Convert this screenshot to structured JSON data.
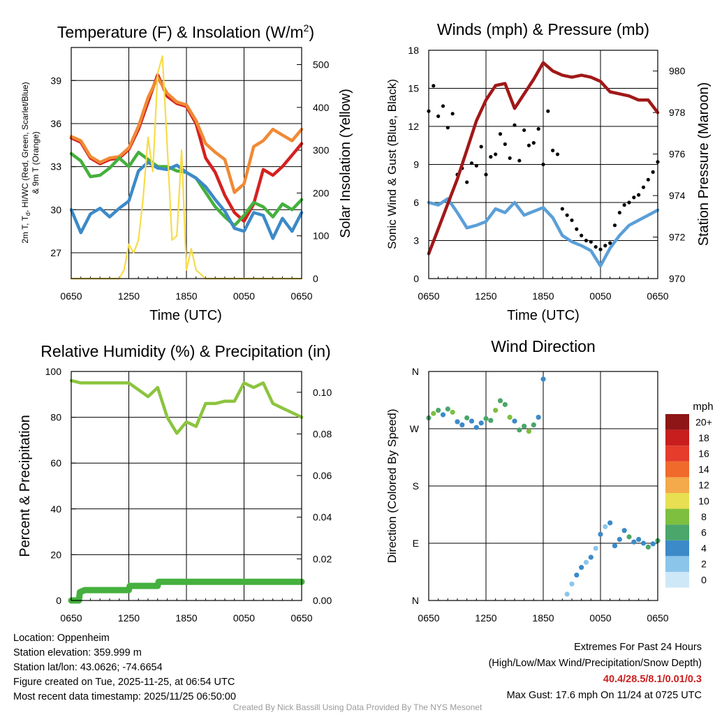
{
  "panels": {
    "temperature": {
      "title_text": "Temperature (F) & Insolation (W/m",
      "title_sup": "2",
      "title_close": ")",
      "ylabel_left_line1_a": "2m T, T",
      "ylabel_left_line1_sub": "d",
      "ylabel_left_line1_b": ", HI/WC (Red, Green, Scarlet/Blue)",
      "ylabel_left_line2": "& 9m T (Orange)",
      "ylabel_right": "Solar Insolation (Yellow)",
      "xlabel": "Time (UTC)"
    },
    "winds": {
      "title": "Winds (mph) & Pressure (mb)",
      "ylabel_left": "Sonic Wind & Gust (Blue, Black)",
      "ylabel_right": "Station Pressure (Maroon)",
      "xlabel": "Time (UTC)"
    },
    "humidity": {
      "title": "Relative Humidity (%) & Precipitation (in)",
      "ylabel_left": "Percent & Precipitation"
    },
    "direction": {
      "title": "Wind Direction",
      "ylabel_left": "Direction (Colored By Speed)",
      "legend_title": "mph"
    }
  },
  "chart_data": [
    {
      "id": "temperature",
      "type": "line",
      "title": "Temperature (F) & Insolation (W/m2)",
      "xlabel": "Time (UTC)",
      "ylabel": "2m T, Td, HI/WC (Red, Green, Scarlet/Blue) & 9m T (Orange)",
      "y2label": "Solar Insolation (Yellow)",
      "x_tick_labels": [
        "0650",
        "1250",
        "1850",
        "0050",
        "0650"
      ],
      "ylim": [
        25.2,
        41.3
      ],
      "yticks": [
        27,
        30,
        33,
        36,
        39
      ],
      "y2lim": [
        0,
        540
      ],
      "y2ticks": [
        0,
        100,
        200,
        300,
        400,
        500
      ],
      "series": [
        {
          "name": "2m T",
          "color": "#d42121",
          "x": [
            0,
            1,
            2,
            3,
            4,
            5,
            6,
            7,
            8,
            9,
            10,
            11,
            12,
            13,
            14,
            15,
            16,
            17,
            18,
            19,
            20,
            21,
            22,
            23,
            24
          ],
          "values": [
            35.0,
            34.7,
            33.6,
            33.2,
            33.5,
            33.6,
            34.2,
            35.6,
            37.5,
            39.4,
            37.9,
            37.4,
            37.2,
            36.0,
            33.6,
            32.6,
            31.0,
            29.8,
            29.2,
            30.4,
            32.8,
            32.4,
            33.0,
            33.8,
            34.6
          ]
        },
        {
          "name": "9m T",
          "color": "#f08a35",
          "x": [
            0,
            1,
            2,
            3,
            4,
            5,
            6,
            7,
            8,
            9,
            10,
            11,
            12,
            13,
            14,
            15,
            16,
            17,
            18,
            19,
            20,
            21,
            22,
            23,
            24
          ],
          "values": [
            35.1,
            34.8,
            33.7,
            33.3,
            33.6,
            33.7,
            34.3,
            35.8,
            37.8,
            39.2,
            38.1,
            37.5,
            37.3,
            36.2,
            34.6,
            34.0,
            33.5,
            31.2,
            31.8,
            34.4,
            34.8,
            35.6,
            35.2,
            34.8,
            35.6
          ]
        },
        {
          "name": "Td",
          "color": "#45b03e",
          "x": [
            0,
            1,
            2,
            3,
            4,
            5,
            6,
            7,
            8,
            9,
            10,
            11,
            12,
            13,
            14,
            15,
            16,
            17,
            18,
            19,
            20,
            21,
            22,
            23,
            24
          ],
          "values": [
            33.9,
            33.4,
            32.3,
            32.4,
            32.9,
            33.6,
            33.0,
            34.0,
            33.5,
            33.0,
            33.0,
            32.7,
            32.6,
            32.2,
            31.2,
            30.2,
            29.5,
            28.9,
            29.6,
            30.5,
            30.2,
            29.5,
            30.4,
            30.0,
            30.7
          ]
        },
        {
          "name": "HI/WC",
          "color": "#3c8ac8",
          "x": [
            0,
            1,
            2,
            3,
            4,
            5,
            6,
            7,
            8,
            9,
            10,
            11,
            12,
            13,
            14,
            15,
            16,
            17,
            18,
            19,
            20,
            21,
            22,
            23,
            24
          ],
          "values": [
            30.0,
            28.4,
            29.7,
            30.1,
            29.5,
            30.1,
            30.6,
            32.7,
            33.3,
            32.9,
            32.8,
            33.1,
            32.6,
            32.2,
            31.6,
            30.7,
            29.9,
            28.7,
            28.5,
            29.8,
            29.6,
            28.0,
            29.4,
            28.5,
            29.8
          ]
        },
        {
          "name": "Solar Insolation",
          "color": "#f7dc49",
          "axis": "right",
          "x": [
            0,
            2,
            3,
            4,
            5,
            5.5,
            6,
            6.5,
            7,
            7.5,
            8,
            8.5,
            9,
            9.5,
            10,
            10.5,
            11,
            11.5,
            12,
            12.5,
            13,
            14,
            16,
            24
          ],
          "values": [
            0,
            0,
            0,
            0,
            0,
            20,
            80,
            60,
            90,
            190,
            330,
            250,
            480,
            520,
            310,
            90,
            100,
            300,
            20,
            70,
            20,
            0,
            0,
            0
          ]
        }
      ]
    },
    {
      "id": "winds",
      "type": "line",
      "title": "Winds (mph) & Pressure (mb)",
      "xlabel": "Time (UTC)",
      "ylabel": "Sonic Wind & Gust (Blue, Black)",
      "y2label": "Station Pressure (Maroon)",
      "x_tick_labels": [
        "0650",
        "1250",
        "1850",
        "0050",
        "0650"
      ],
      "ylim": [
        0,
        18
      ],
      "yticks": [
        0,
        3,
        6,
        9,
        12,
        15,
        18
      ],
      "y2lim": [
        970,
        981
      ],
      "y2ticks": [
        970,
        972,
        974,
        976,
        978,
        980
      ],
      "series": [
        {
          "name": "Sonic Wind",
          "color": "#5b9fd8",
          "x": [
            0,
            1,
            2,
            3,
            4,
            5,
            6,
            7,
            8,
            9,
            10,
            11,
            12,
            13,
            14,
            15,
            16,
            17,
            18,
            19,
            20,
            21,
            22,
            23,
            24
          ],
          "values": [
            6.0,
            5.8,
            6.3,
            5.2,
            4.0,
            4.2,
            4.5,
            5.5,
            5.2,
            6.0,
            5.0,
            5.3,
            5.6,
            4.8,
            3.4,
            2.9,
            2.6,
            2.2,
            1.0,
            2.4,
            3.4,
            4.2,
            4.6,
            5.0,
            5.4
          ]
        },
        {
          "name": "Gust",
          "color": "#000000",
          "style": "points",
          "x": [
            0,
            0.5,
            1,
            1.5,
            2,
            2.5,
            3,
            3.5,
            4,
            4.5,
            5,
            5.5,
            6,
            6.5,
            7,
            7.5,
            8,
            8.5,
            9,
            9.5,
            10,
            10.5,
            11,
            11.5,
            12,
            12.5,
            13,
            13.5,
            14,
            14.5,
            15,
            15.5,
            16,
            16.5,
            17,
            17.5,
            18,
            18.5,
            19,
            19.5,
            20,
            20.5,
            21,
            21.5,
            22,
            22.5,
            23,
            23.5,
            24
          ],
          "values": [
            13.2,
            15.2,
            12.8,
            13.6,
            11.9,
            13.0,
            8.2,
            8.7,
            7.6,
            9.1,
            8.9,
            10.4,
            8.2,
            9.6,
            9.8,
            11.4,
            10.6,
            9.5,
            12.1,
            9.3,
            11.7,
            10.5,
            10.7,
            11.8,
            9.0,
            13.2,
            10.1,
            9.8,
            5.5,
            5.0,
            4.6,
            3.9,
            3.4,
            3.0,
            2.9,
            2.5,
            2.3,
            2.6,
            2.8,
            4.2,
            5.2,
            5.8,
            6.0,
            6.4,
            6.6,
            7.2,
            7.8,
            8.4,
            9.2
          ]
        },
        {
          "name": "Station Pressure",
          "color": "#a11818",
          "axis": "right",
          "x": [
            0,
            1,
            2,
            3,
            4,
            5,
            6,
            7,
            8,
            9,
            10,
            11,
            12,
            13,
            14,
            15,
            16,
            17,
            18,
            19,
            20,
            21,
            22,
            23,
            24
          ],
          "values": [
            971.2,
            972.4,
            973.6,
            974.8,
            976.2,
            977.6,
            978.6,
            979.3,
            979.4,
            978.2,
            978.9,
            979.6,
            980.4,
            980.0,
            979.8,
            979.7,
            979.8,
            979.7,
            979.5,
            979.0,
            978.9,
            978.8,
            978.6,
            978.6,
            978.0
          ]
        }
      ]
    },
    {
      "id": "humidity",
      "type": "line",
      "title": "Relative Humidity (%) & Precipitation (in)",
      "ylabel": "Percent & Precipitation",
      "x_tick_labels": [
        "0650",
        "1250",
        "1850",
        "0050",
        "0650"
      ],
      "ylim": [
        0,
        100
      ],
      "yticks": [
        0,
        20,
        40,
        60,
        80,
        100
      ],
      "y2lim": [
        0,
        0.11
      ],
      "y2ticks": [
        0.0,
        0.02,
        0.04,
        0.06,
        0.08,
        0.1
      ],
      "y2tick_labels": [
        "0.00",
        "0.02",
        "0.04",
        "0.06",
        "0.08",
        "0.10"
      ],
      "series": [
        {
          "name": "Relative Humidity",
          "color": "#8cc43f",
          "x": [
            0,
            1,
            2,
            3,
            4,
            5,
            6,
            7,
            8,
            9,
            10,
            11,
            12,
            13,
            14,
            15,
            16,
            17,
            18,
            19,
            20,
            21,
            22,
            23,
            24
          ],
          "values": [
            96,
            95,
            95,
            95,
            95,
            95,
            95,
            92,
            89,
            93,
            80,
            73,
            78,
            76,
            86,
            86,
            87,
            87,
            95,
            93,
            95,
            86,
            84,
            82,
            80
          ]
        },
        {
          "name": "Precipitation",
          "color": "#45b03e",
          "axis": "right",
          "x": [
            0,
            0.8,
            0.9,
            1.4,
            6.0,
            6.1,
            9.0,
            9.1,
            24
          ],
          "values": [
            0,
            0,
            0.004,
            0.005,
            0.005,
            0.007,
            0.007,
            0.009,
            0.009
          ]
        }
      ]
    },
    {
      "id": "direction",
      "type": "scatter",
      "title": "Wind Direction",
      "ylabel": "Direction (Colored By Speed)",
      "x_tick_labels": [
        "0650",
        "1250",
        "1850",
        "0050",
        "0650"
      ],
      "ylim": [
        0,
        360
      ],
      "yticks": [
        0,
        90,
        180,
        270,
        360
      ],
      "ytick_labels": [
        "N",
        "E",
        "S",
        "W",
        "N"
      ],
      "color_scale": {
        "title": "mph",
        "labels": [
          "0",
          "2",
          "4",
          "6",
          "8",
          "10",
          "12",
          "14",
          "16",
          "18",
          "20+"
        ],
        "colors": [
          "#cfe8f7",
          "#8cc5ea",
          "#3c8ac8",
          "#4aa66a",
          "#7fbf3f",
          "#e8df52",
          "#f4a94a",
          "#f06a2c",
          "#e53c2b",
          "#c81e1e",
          "#8e1616"
        ]
      },
      "series": [
        {
          "name": "Wind Direction",
          "x": [
            0,
            0.5,
            1,
            1.5,
            2,
            2.5,
            3,
            3.5,
            4,
            4.5,
            5,
            5.5,
            6,
            6.5,
            7,
            7.5,
            8,
            8.5,
            9,
            9.5,
            10,
            10.5,
            11,
            11.5,
            12,
            14.5,
            15,
            15.5,
            16,
            16.5,
            17,
            17.5,
            18,
            18.5,
            19,
            19.5,
            20,
            20.5,
            21,
            21.5,
            22,
            22.5,
            23,
            23.5,
            24
          ],
          "values": [
            287,
            294,
            299,
            292,
            301,
            296,
            281,
            276,
            287,
            282,
            272,
            279,
            286,
            283,
            299,
            314,
            308,
            288,
            282,
            268,
            274,
            266,
            276,
            288,
            348,
            10,
            26,
            40,
            52,
            60,
            68,
            82,
            104,
            116,
            122,
            86,
            96,
            110,
            100,
            92,
            96,
            90,
            84,
            89,
            94
          ],
          "speed_mph": [
            6,
            7,
            5,
            4,
            6,
            7,
            4,
            4,
            5,
            4,
            4,
            3,
            5,
            6,
            7,
            6,
            5,
            8,
            4,
            5,
            6,
            7,
            5,
            4,
            3,
            1,
            2,
            3,
            3,
            2,
            4,
            2,
            3,
            2,
            3,
            4,
            3,
            4,
            5,
            4,
            4,
            3,
            5,
            4,
            5
          ]
        }
      ]
    }
  ],
  "info_left": {
    "location": "Location: Oppenheim",
    "elevation": "Station elevation: 359.999 m",
    "latlon": "Station lat/lon: 43.0626; -74.6654",
    "created": "Figure created on Tue, 2025-11-25, at 06:54 UTC",
    "recent": "Most recent data timestamp: 2025/11/25 06:50:00"
  },
  "info_right": {
    "extremes_title": "Extremes For Past 24 Hours",
    "extremes_fields": "(High/Low/Max Wind/Precipitation/Snow Depth)",
    "extremes_values": "40.4/28.5/8.1/0.01/0.3",
    "max_gust": "Max Gust: 17.6 mph On 11/24 at 0725 UTC"
  },
  "credit": "Created By Nick Bassill Using Data Provided By The NYS Mesonet"
}
